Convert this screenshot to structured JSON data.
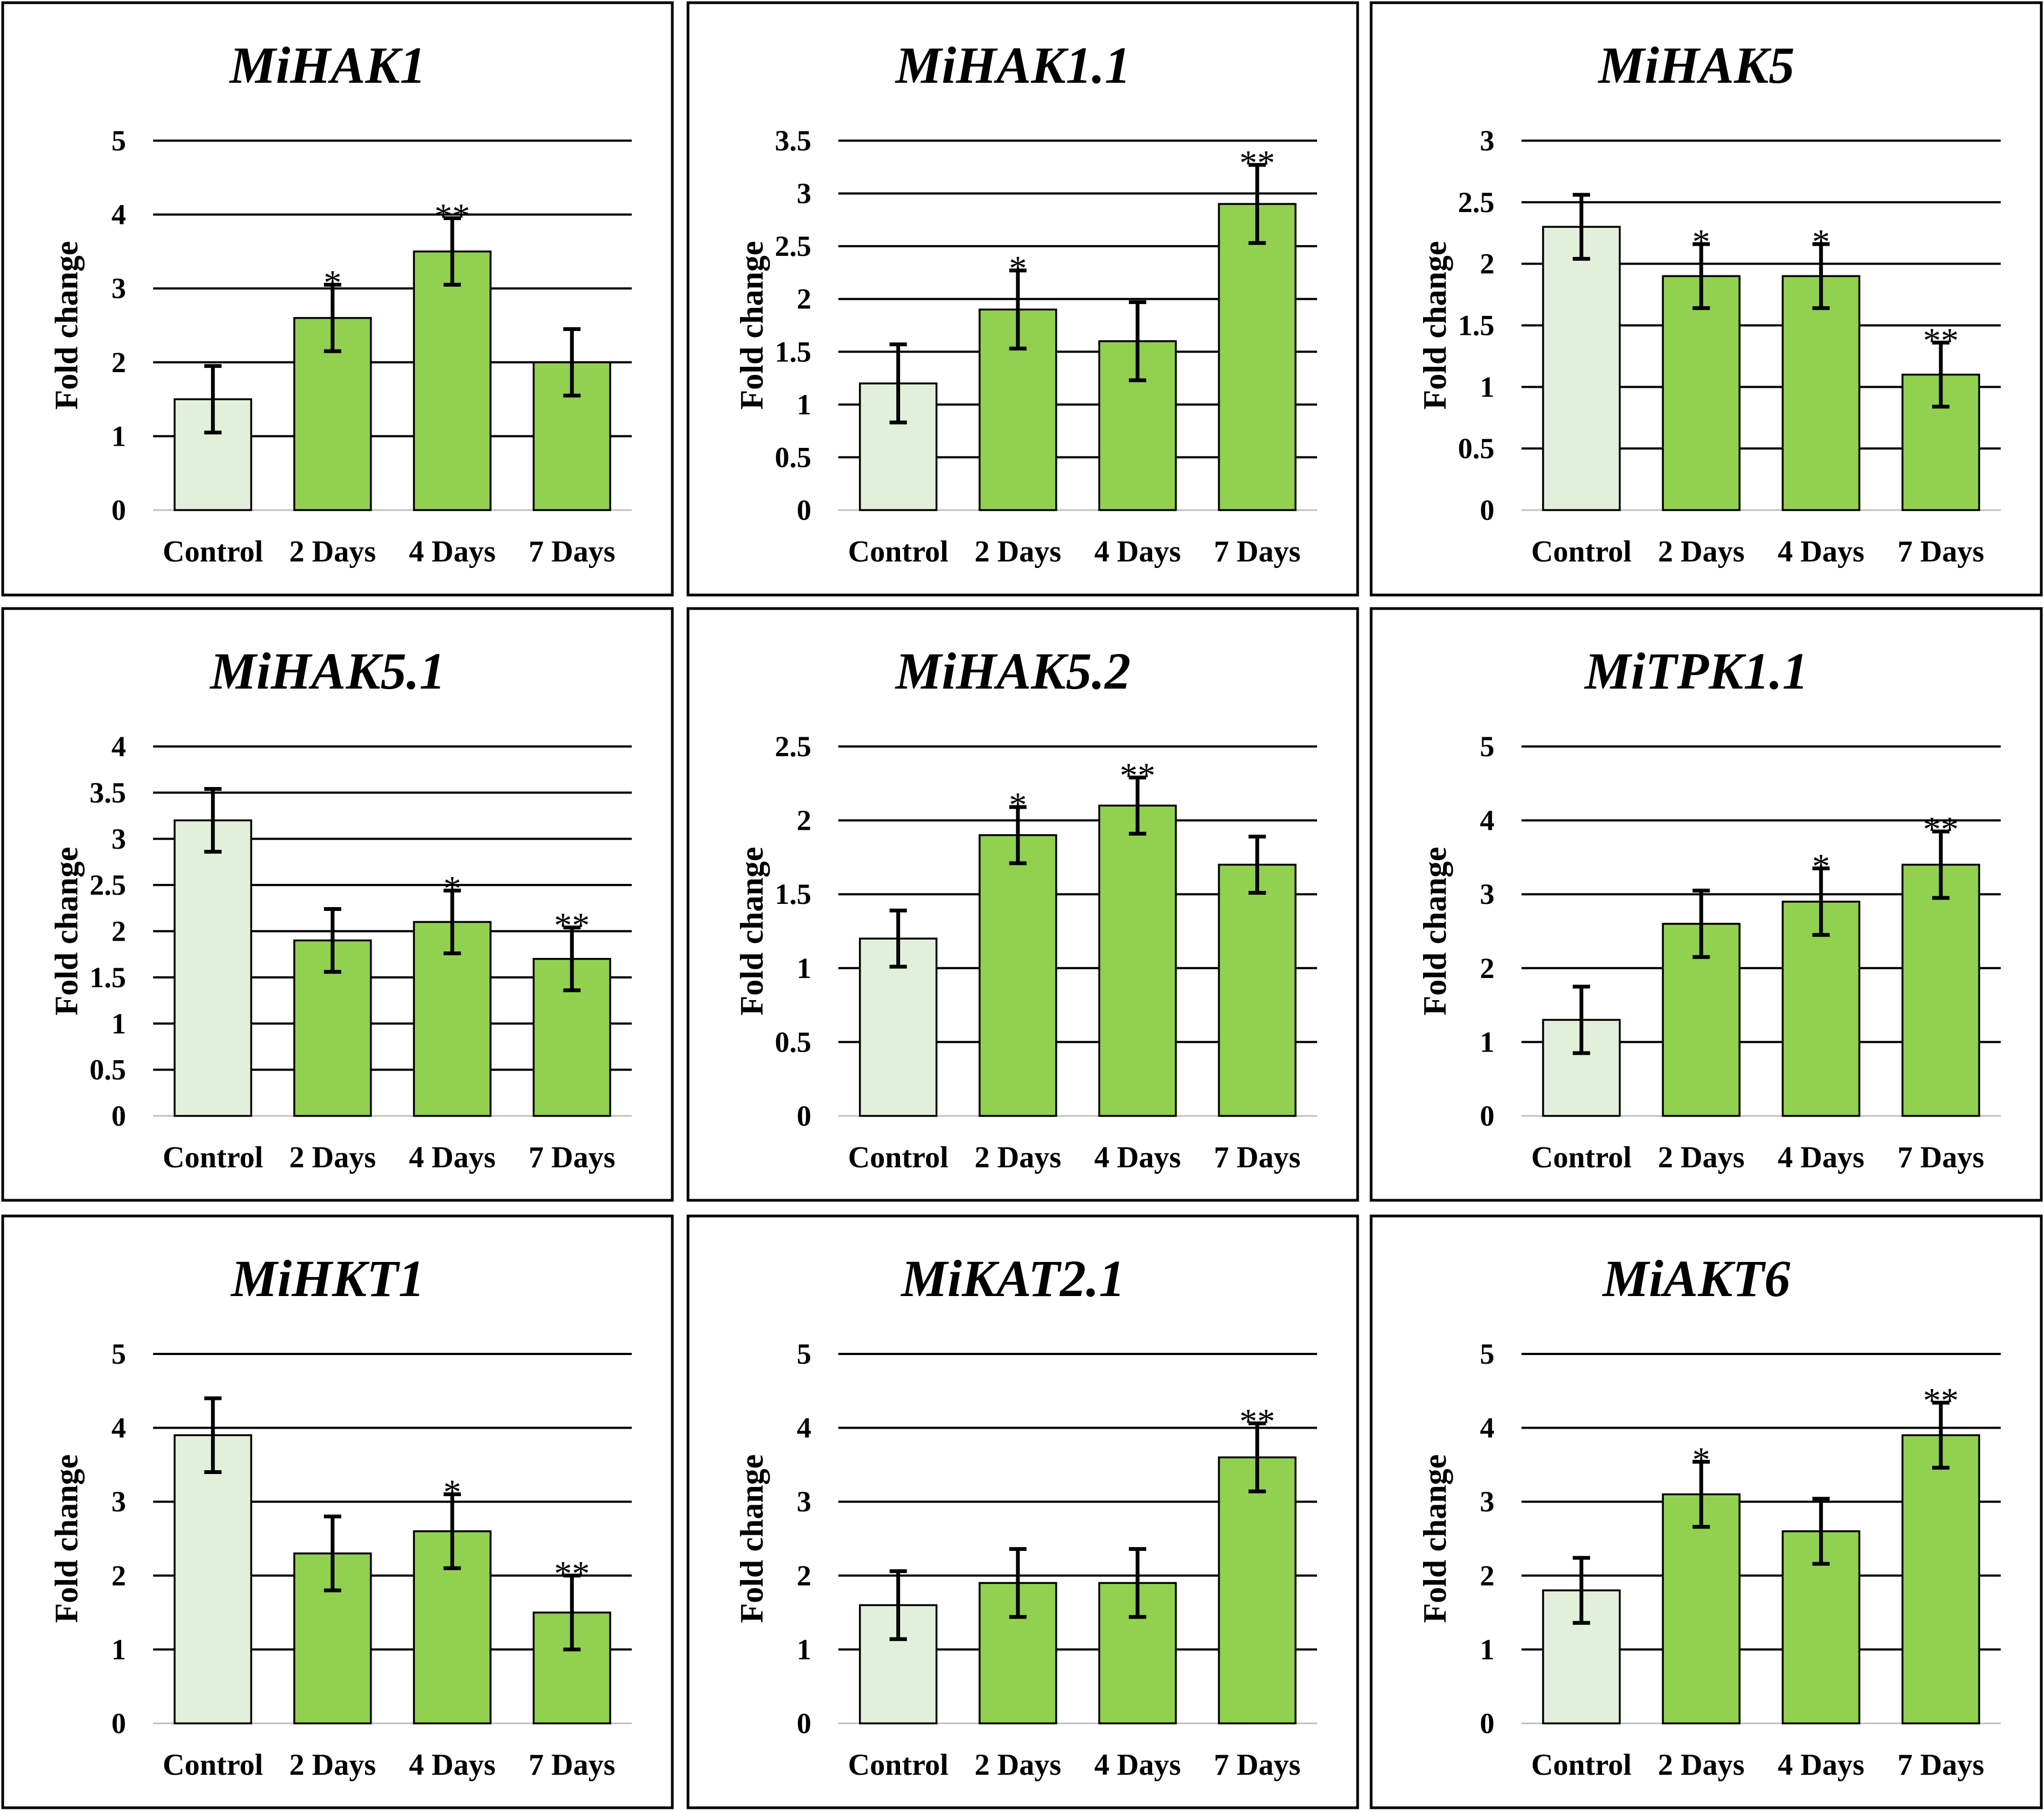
{
  "figure": {
    "colors": {
      "control": "#e2efda",
      "treatment": "#92d050",
      "grid": "#000000"
    },
    "ylabel": "Fold change",
    "categories": [
      "Control",
      "2 Days",
      "4 Days",
      "7 Days"
    ]
  },
  "chart_data": [
    {
      "type": "bar",
      "title": "MiHAK1",
      "ylabel": "Fold change",
      "categories": [
        "Control",
        "2 Days",
        "4 Days",
        "7 Days"
      ],
      "values": [
        1.5,
        2.6,
        3.5,
        2.0
      ],
      "errors": [
        0.45,
        0.45,
        0.45,
        0.45
      ],
      "significance": [
        "",
        "*",
        "**",
        ""
      ],
      "ylim": [
        0,
        5
      ],
      "yticks": [
        "0",
        "1",
        "2",
        "3",
        "4",
        "5"
      ]
    },
    {
      "type": "bar",
      "title": "MiHAK1.1",
      "ylabel": "Fold change",
      "categories": [
        "Control",
        "2 Days",
        "4 Days",
        "7 Days"
      ],
      "values": [
        1.2,
        1.9,
        1.6,
        2.9
      ],
      "errors": [
        0.37,
        0.37,
        0.37,
        0.37
      ],
      "significance": [
        "",
        "*",
        "",
        "**"
      ],
      "ylim": [
        0,
        3.5
      ],
      "yticks": [
        "0",
        "0.5",
        "1",
        "1.5",
        "2",
        "2.5",
        "3",
        "3.5"
      ]
    },
    {
      "type": "bar",
      "title": "MiHAK5",
      "ylabel": "Fold change",
      "categories": [
        "Control",
        "2 Days",
        "4 Days",
        "7 Days"
      ],
      "values": [
        2.3,
        1.9,
        1.9,
        1.1
      ],
      "errors": [
        0.26,
        0.26,
        0.26,
        0.26
      ],
      "significance": [
        "",
        "*",
        "*",
        "**"
      ],
      "ylim": [
        0,
        3
      ],
      "yticks": [
        "0",
        "0.5",
        "1",
        "1.5",
        "2",
        "2.5",
        "3"
      ]
    },
    {
      "type": "bar",
      "title": "MiHAK5.1",
      "ylabel": "Fold change",
      "categories": [
        "Control",
        "2 Days",
        "4 Days",
        "7 Days"
      ],
      "values": [
        3.2,
        1.9,
        2.1,
        1.7
      ],
      "errors": [
        0.34,
        0.34,
        0.34,
        0.34
      ],
      "significance": [
        "",
        "",
        "*",
        "**"
      ],
      "ylim": [
        0,
        4
      ],
      "yticks": [
        "0",
        "0.5",
        "1",
        "1.5",
        "2",
        "2.5",
        "3",
        "3.5",
        "4"
      ]
    },
    {
      "type": "bar",
      "title": "MiHAK5.2",
      "ylabel": "Fold change",
      "categories": [
        "Control",
        "2 Days",
        "4 Days",
        "7 Days"
      ],
      "values": [
        1.2,
        1.9,
        2.1,
        1.7
      ],
      "errors": [
        0.19,
        0.19,
        0.19,
        0.19
      ],
      "significance": [
        "",
        "*",
        "**",
        ""
      ],
      "ylim": [
        0,
        2.5
      ],
      "yticks": [
        "0",
        "0.5",
        "1",
        "1.5",
        "2",
        "2.5"
      ]
    },
    {
      "type": "bar",
      "title": "MiTPK1.1",
      "ylabel": "Fold change",
      "categories": [
        "Control",
        "2 Days",
        "4 Days",
        "7 Days"
      ],
      "values": [
        1.3,
        2.6,
        2.9,
        3.4
      ],
      "errors": [
        0.45,
        0.45,
        0.45,
        0.45
      ],
      "significance": [
        "",
        "",
        "*",
        "**"
      ],
      "ylim": [
        0,
        5
      ],
      "yticks": [
        "0",
        "1",
        "2",
        "3",
        "4",
        "5"
      ]
    },
    {
      "type": "bar",
      "title": "MiHKT1",
      "ylabel": "Fold change",
      "categories": [
        "Control",
        "2 Days",
        "4 Days",
        "7 Days"
      ],
      "values": [
        3.9,
        2.3,
        2.6,
        1.5
      ],
      "errors": [
        0.5,
        0.5,
        0.5,
        0.5
      ],
      "significance": [
        "",
        "",
        "*",
        "**"
      ],
      "ylim": [
        0,
        5
      ],
      "yticks": [
        "0",
        "1",
        "2",
        "3",
        "4",
        "5"
      ]
    },
    {
      "type": "bar",
      "title": "MiKAT2.1",
      "ylabel": "Fold change",
      "categories": [
        "Control",
        "2 Days",
        "4 Days",
        "7 Days"
      ],
      "values": [
        1.6,
        1.9,
        1.9,
        3.6
      ],
      "errors": [
        0.46,
        0.46,
        0.46,
        0.46
      ],
      "significance": [
        "",
        "",
        "",
        "**"
      ],
      "ylim": [
        0,
        5
      ],
      "yticks": [
        "0",
        "1",
        "2",
        "3",
        "4",
        "5"
      ]
    },
    {
      "type": "bar",
      "title": "MiAKT6",
      "ylabel": "Fold change",
      "categories": [
        "Control",
        "2 Days",
        "4 Days",
        "7 Days"
      ],
      "values": [
        1.8,
        3.1,
        2.6,
        3.9
      ],
      "errors": [
        0.44,
        0.44,
        0.44,
        0.44
      ],
      "significance": [
        "",
        "*",
        "",
        "**"
      ],
      "ylim": [
        0,
        5
      ],
      "yticks": [
        "0",
        "1",
        "2",
        "3",
        "4",
        "5"
      ]
    }
  ]
}
